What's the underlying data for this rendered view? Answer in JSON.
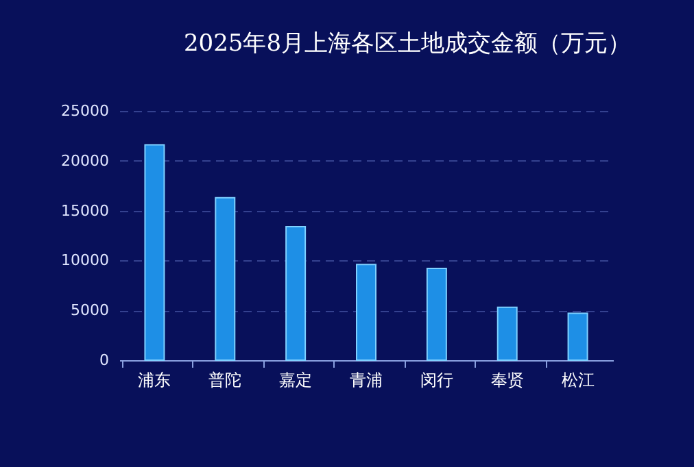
{
  "chart_data": {
    "type": "bar",
    "title": "2025年8月上海各区土地成交金额（万元）",
    "categories": [
      "浦东",
      "普陀",
      "嘉定",
      "青浦",
      "闵行",
      "奉贤",
      "松江"
    ],
    "values": [
      21600,
      16300,
      13400,
      9600,
      9200,
      5300,
      4700
    ],
    "color": "#1e8fe6",
    "ylim": [
      0,
      25000
    ],
    "yticks": [
      0,
      5000,
      10000,
      15000,
      20000,
      25000
    ],
    "grid": "y"
  }
}
